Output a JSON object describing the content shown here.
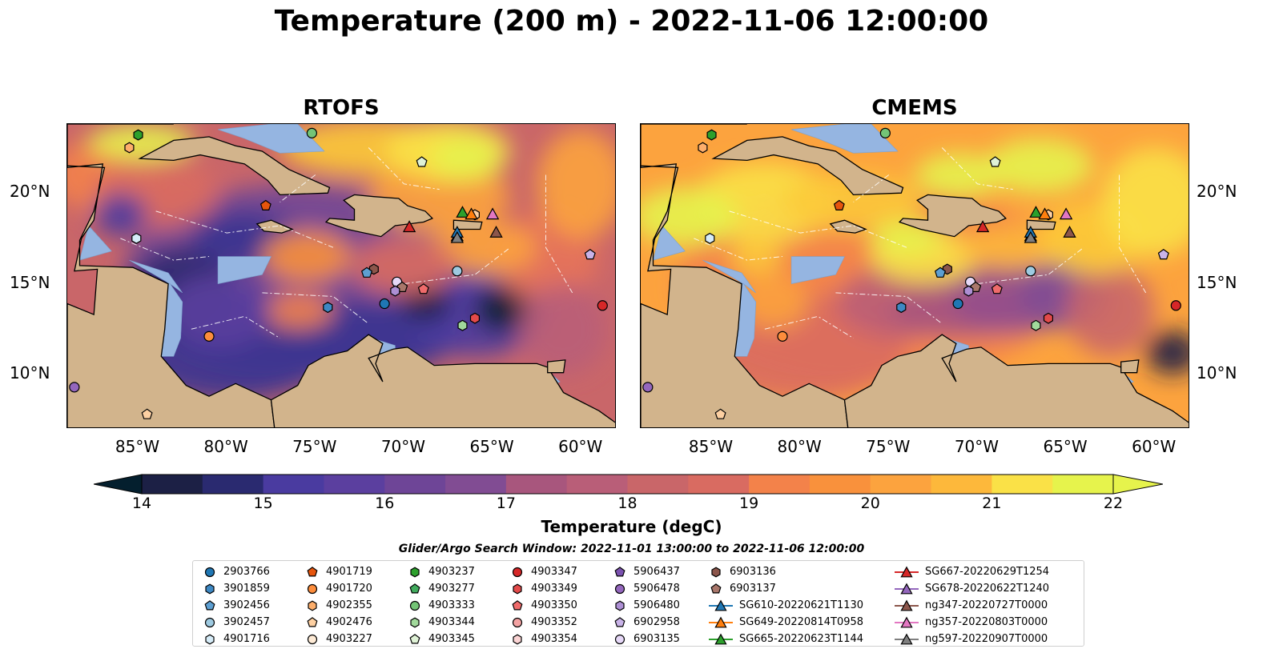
{
  "title": "Temperature (200 m) - 2022-11-06 12:00:00",
  "panels": [
    {
      "title": "RTOFS",
      "model": "rtofs"
    },
    {
      "title": "CMEMS",
      "model": "cmems"
    }
  ],
  "axes": {
    "lat_labels": [
      "20°N",
      "15°N",
      "10°N"
    ],
    "lon_labels": [
      "85°W",
      "80°W",
      "75°W",
      "70°W",
      "65°W",
      "60°W"
    ],
    "lat_range": [
      7.0,
      23.8
    ],
    "lon_range": [
      -89.0,
      -58.0
    ]
  },
  "colorbar": {
    "label": "Temperature (degC)",
    "ticks": [
      "14",
      "15",
      "16",
      "17",
      "18",
      "19",
      "20",
      "21",
      "22"
    ],
    "range": [
      14,
      22
    ],
    "extend": "both",
    "colors": [
      "#041f2e",
      "#1c2045",
      "#2a2a70",
      "#3a3490",
      "#4a3ba0",
      "#5b3f9f",
      "#6e4597",
      "#814c93",
      "#944f8c",
      "#a8567d",
      "#b95e78",
      "#c96669",
      "#d96b61",
      "#e7735a",
      "#f3824a",
      "#f9913c",
      "#fca33e",
      "#fdb83b",
      "#fcca39",
      "#fae147",
      "#e6f34c"
    ]
  },
  "map_colors": {
    "land": "#d2b48c",
    "shallow": "#95b5e1",
    "deep": "#041f2e"
  },
  "legend": {
    "title": "Glider/Argo Search Window: 2022-11-01 13:00:00 to 2022-11-06 12:00:00",
    "columns": [
      [
        {
          "label": "2903766",
          "marker": "circle",
          "color": "#1f77b4"
        },
        {
          "label": "3901859",
          "marker": "hexagon",
          "color": "#3d88c3"
        },
        {
          "label": "3902456",
          "marker": "pentagon",
          "color": "#5d9fd2"
        },
        {
          "label": "3902457",
          "marker": "circle",
          "color": "#9ecae1"
        },
        {
          "label": "4901716",
          "marker": "hexagon",
          "color": "#d6ecf8"
        }
      ],
      [
        {
          "label": "4901719",
          "marker": "pentagon",
          "color": "#e6550d"
        },
        {
          "label": "4901720",
          "marker": "circle",
          "color": "#fd8d3c"
        },
        {
          "label": "4902355",
          "marker": "hexagon",
          "color": "#fdae6b"
        },
        {
          "label": "4902476",
          "marker": "pentagon",
          "color": "#fdd0a2"
        },
        {
          "label": "4903227",
          "marker": "circle",
          "color": "#feebd6"
        }
      ],
      [
        {
          "label": "4903237",
          "marker": "hexagon",
          "color": "#2ca02c"
        },
        {
          "label": "4903277",
          "marker": "pentagon",
          "color": "#41ab5d"
        },
        {
          "label": "4903333",
          "marker": "circle",
          "color": "#74c476"
        },
        {
          "label": "4903344",
          "marker": "hexagon",
          "color": "#a1d99b"
        },
        {
          "label": "4903345",
          "marker": "pentagon",
          "color": "#dff2d6"
        }
      ],
      [
        {
          "label": "4903347",
          "marker": "circle",
          "color": "#d62728"
        },
        {
          "label": "4903349",
          "marker": "hexagon",
          "color": "#e34a4a"
        },
        {
          "label": "4903350",
          "marker": "pentagon",
          "color": "#ef6b6b"
        },
        {
          "label": "4903352",
          "marker": "circle",
          "color": "#f4a3a3"
        },
        {
          "label": "4903354",
          "marker": "hexagon",
          "color": "#fbd4d4"
        }
      ],
      [
        {
          "label": "5906437",
          "marker": "pentagon",
          "color": "#7b52b0"
        },
        {
          "label": "5906478",
          "marker": "circle",
          "color": "#9467bd"
        },
        {
          "label": "5906480",
          "marker": "hexagon",
          "color": "#ad8fd4"
        },
        {
          "label": "6902958",
          "marker": "pentagon",
          "color": "#c9b3e8"
        },
        {
          "label": "6903135",
          "marker": "circle",
          "color": "#e6d8f7"
        }
      ],
      [
        {
          "label": "6903136",
          "marker": "hexagon",
          "color": "#8c564b"
        },
        {
          "label": "6903137",
          "marker": "pentagon",
          "color": "#a9776b"
        },
        {
          "label": "SG610-20220621T1130",
          "marker": "triangle-line",
          "color": "#1f77b4"
        },
        {
          "label": "SG649-20220814T0958",
          "marker": "triangle-line",
          "color": "#ff7f0e"
        },
        {
          "label": "SG665-20220623T1144",
          "marker": "triangle-line",
          "color": "#2ca02c"
        }
      ],
      [
        {
          "label": "SG667-20220629T1254",
          "marker": "triangle-line",
          "color": "#d62728"
        },
        {
          "label": "SG678-20220622T1240",
          "marker": "triangle-line",
          "color": "#9467bd"
        },
        {
          "label": "ng347-20220727T0000",
          "marker": "triangle-line",
          "color": "#8c564b"
        },
        {
          "label": "ng357-20220803T0000",
          "marker": "triangle-line",
          "color": "#e377c2"
        },
        {
          "label": "ng597-20220907T0000",
          "marker": "triangle-line",
          "color": "#7f7f7f"
        }
      ]
    ]
  },
  "floats": [
    {
      "id": "4903237",
      "lon": -85.0,
      "lat": 23.2
    },
    {
      "id": "4902355",
      "lon": -85.5,
      "lat": 22.5
    },
    {
      "id": "4903333",
      "lon": -75.2,
      "lat": 23.3
    },
    {
      "id": "4903345",
      "lon": -69.0,
      "lat": 21.7
    },
    {
      "id": "4901719",
      "lon": -77.8,
      "lat": 19.3
    },
    {
      "id": "4901716",
      "lon": -85.1,
      "lat": 17.5
    },
    {
      "id": "6903136",
      "lon": -71.7,
      "lat": 15.8
    },
    {
      "id": "3902456",
      "lon": -72.1,
      "lat": 15.6
    },
    {
      "id": "3902457",
      "lon": -67.0,
      "lat": 15.7
    },
    {
      "id": "6903135",
      "lon": -70.4,
      "lat": 15.1
    },
    {
      "id": "6903137",
      "lon": -70.1,
      "lat": 14.8
    },
    {
      "id": "5906480",
      "lon": -70.5,
      "lat": 14.6
    },
    {
      "id": "4903350",
      "lon": -68.9,
      "lat": 14.7
    },
    {
      "id": "3901859",
      "lon": -74.3,
      "lat": 13.7
    },
    {
      "id": "2903766",
      "lon": -71.1,
      "lat": 13.9
    },
    {
      "id": "4903347",
      "lon": -58.8,
      "lat": 13.8
    },
    {
      "id": "6902958",
      "lon": -59.5,
      "lat": 16.6
    },
    {
      "id": "4903349",
      "lon": -66.0,
      "lat": 13.1
    },
    {
      "id": "4903344",
      "lon": -66.7,
      "lat": 12.7
    },
    {
      "id": "4901720",
      "lon": -81.0,
      "lat": 12.1
    },
    {
      "id": "5906478",
      "lon": -88.6,
      "lat": 9.3
    },
    {
      "id": "4902476",
      "lon": -84.5,
      "lat": 7.8
    }
  ],
  "gliders": [
    {
      "id": "SG665-20220623T1144",
      "lon": -66.7,
      "lat": 18.9
    },
    {
      "id": "SG667-20220629T1254",
      "lon": -69.7,
      "lat": 18.1
    },
    {
      "id": "ng357-20220803T0000",
      "lon": -65.0,
      "lat": 18.8
    },
    {
      "id": "SG678-20220622T1240",
      "lon": -67.0,
      "lat": 17.6
    },
    {
      "id": "ng347-20220727T0000",
      "lon": -64.8,
      "lat": 17.8
    },
    {
      "id": "SG610-20220621T1130",
      "lon": -67.0,
      "lat": 17.8
    },
    {
      "id": "ng597-20220907T0000",
      "lon": -67.0,
      "lat": 17.5
    },
    {
      "id": "SG649-20220814T0958",
      "lon": -66.2,
      "lat": 18.8
    }
  ],
  "extra_markers": [
    {
      "label": "4903354",
      "marker": "hexagon",
      "lon": -66.0,
      "lat": 18.8,
      "color": "#fdd0a2"
    }
  ]
}
